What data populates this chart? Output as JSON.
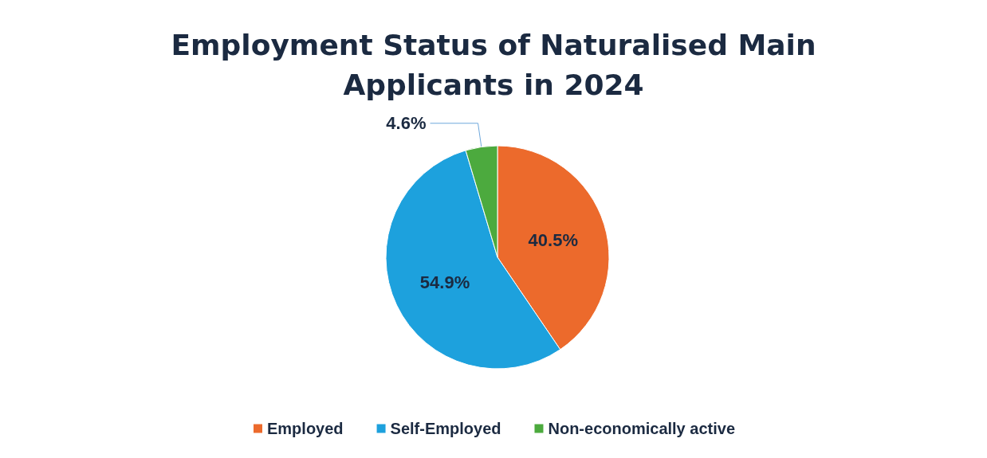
{
  "chart_data": {
    "type": "pie",
    "title": "Employment Status of Naturalised Main Applicants in 2024",
    "categories": [
      "Employed",
      "Self-Employed",
      "Non-economically active"
    ],
    "values": [
      40.5,
      54.9,
      4.6
    ],
    "colors": [
      "#ec6a2c",
      "#1da1dd",
      "#4caa3e"
    ],
    "value_labels": [
      "40.5%",
      "54.9%",
      "4.6%"
    ],
    "legend": "bottom"
  }
}
